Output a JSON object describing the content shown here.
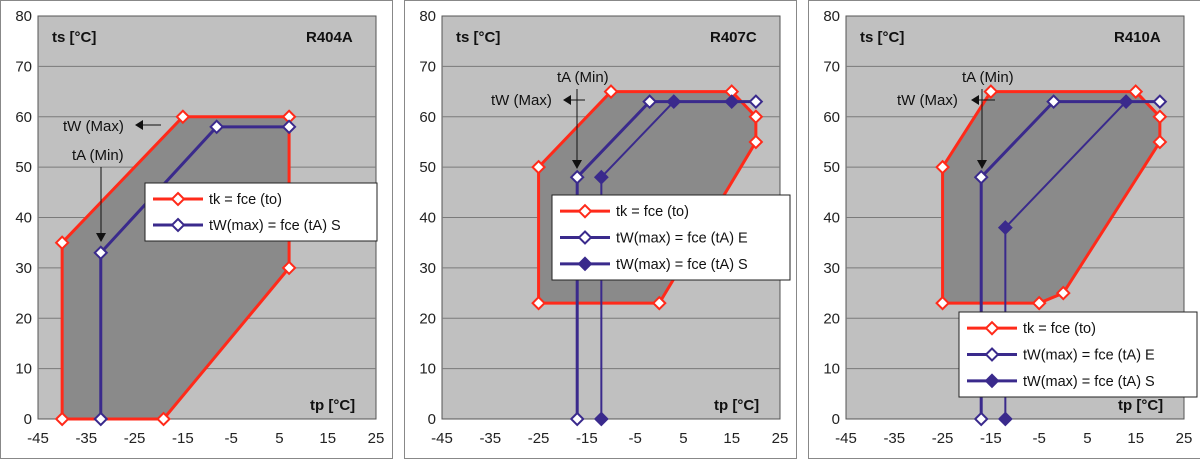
{
  "chart_data": [
    {
      "type": "line",
      "title": "R404A",
      "xlabel": "tp [°C]",
      "ylabel": "ts [°C]",
      "xlim": [
        -45,
        25
      ],
      "ylim": [
        0,
        80
      ],
      "x_ticks": [
        "-45",
        "-35",
        "-25",
        "-15",
        "-5",
        "5",
        "15",
        "25"
      ],
      "y_ticks": [
        "0",
        "10",
        "20",
        "30",
        "40",
        "50",
        "60",
        "70",
        "80"
      ],
      "grid": true,
      "annotations": [
        {
          "text": "tW (Max)",
          "kind": "left-arrow"
        },
        {
          "text": "tA (Min)",
          "kind": "down-arrow"
        }
      ],
      "series": [
        {
          "name": "tk = fce (to)",
          "color": "#ff2a1a",
          "marker": "open-diamond",
          "filled_area": true,
          "x": [
            -40,
            -40,
            -15,
            7,
            7,
            -19,
            -40
          ],
          "y": [
            0,
            35,
            60,
            60,
            30,
            0,
            0
          ]
        },
        {
          "name": "tW(max) = fce (tA) S",
          "color": "#3a2a8c",
          "marker": "open-diamond",
          "x": [
            -32,
            -32,
            -8,
            7
          ],
          "y": [
            0,
            33,
            58,
            58
          ]
        }
      ]
    },
    {
      "type": "line",
      "title": "R407C",
      "xlabel": "tp [°C]",
      "ylabel": "ts [°C]",
      "xlim": [
        -45,
        25
      ],
      "ylim": [
        0,
        80
      ],
      "x_ticks": [
        "-45",
        "-35",
        "-25",
        "-15",
        "-5",
        "5",
        "15",
        "25"
      ],
      "y_ticks": [
        "0",
        "10",
        "20",
        "30",
        "40",
        "50",
        "60",
        "70",
        "80"
      ],
      "grid": true,
      "annotations": [
        {
          "text": "tA (Min)",
          "kind": "down-arrow"
        },
        {
          "text": "tW (Max)",
          "kind": "left-arrow"
        }
      ],
      "series": [
        {
          "name": "tk = fce (to)",
          "color": "#ff2a1a",
          "marker": "open-diamond",
          "filled_area": true,
          "x": [
            -25,
            -25,
            -10,
            15,
            20,
            20,
            0,
            -25
          ],
          "y": [
            23,
            50,
            65,
            65,
            60,
            55,
            23,
            23
          ]
        },
        {
          "name": "tW(max) = fce (tA) E",
          "color": "#3a2a8c",
          "marker": "open-diamond",
          "x": [
            -17,
            -17,
            -2,
            20
          ],
          "y": [
            0,
            48,
            63,
            63
          ]
        },
        {
          "name": "tW(max) = fce (tA) S",
          "color": "#3a2a8c",
          "marker": "filled-diamond",
          "x": [
            -12,
            -12,
            3,
            15
          ],
          "y": [
            0,
            48,
            63,
            63
          ]
        }
      ]
    },
    {
      "type": "line",
      "title": "R410A",
      "xlabel": "tp [°C]",
      "ylabel": "ts [°C]",
      "xlim": [
        -45,
        25
      ],
      "ylim": [
        0,
        80
      ],
      "x_ticks": [
        "-45",
        "-35",
        "-25",
        "-15",
        "-5",
        "5",
        "15",
        "25"
      ],
      "y_ticks": [
        "0",
        "10",
        "20",
        "30",
        "40",
        "50",
        "60",
        "70",
        "80"
      ],
      "grid": true,
      "annotations": [
        {
          "text": "tA (Min)",
          "kind": "down-arrow"
        },
        {
          "text": "tW (Max)",
          "kind": "left-arrow"
        }
      ],
      "series": [
        {
          "name": "tk = fce (to)",
          "color": "#ff2a1a",
          "marker": "open-diamond",
          "filled_area": true,
          "x": [
            -25,
            -25,
            -15,
            15,
            20,
            20,
            0,
            -5,
            -25
          ],
          "y": [
            23,
            50,
            65,
            65,
            60,
            55,
            25,
            23,
            23
          ]
        },
        {
          "name": "tW(max) = fce (tA) E",
          "color": "#3a2a8c",
          "marker": "open-diamond",
          "x": [
            -17,
            -17,
            -2,
            20
          ],
          "y": [
            0,
            48,
            63,
            63
          ]
        },
        {
          "name": "tW(max) = fce (tA) S",
          "color": "#3a2a8c",
          "marker": "filled-diamond",
          "x": [
            -12,
            -12,
            13
          ],
          "y": [
            0,
            38,
            63
          ]
        }
      ]
    }
  ]
}
